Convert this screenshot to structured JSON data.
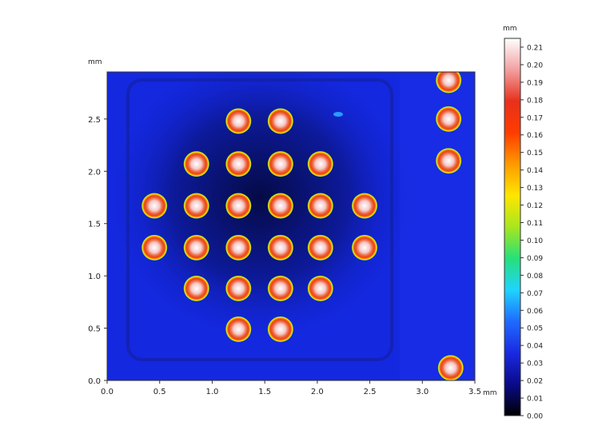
{
  "chart_data": {
    "type": "heatmap",
    "subtype": "height-map with solder-bump pads",
    "x_unit": "mm",
    "y_unit": "mm",
    "x_ticks": [
      "0.0",
      "0.5",
      "1.0",
      "1.5",
      "2.0",
      "2.5",
      "3.0",
      "3.5"
    ],
    "y_ticks": [
      "0.0",
      "0.5",
      "1.0",
      "1.5",
      "2.0",
      "2.5"
    ],
    "xlim": [
      0,
      3.5
    ],
    "ylim": [
      0,
      2.95
    ],
    "colorbar": {
      "unit": "mm",
      "ticks": [
        "0.21",
        "0.20",
        "0.19",
        "0.18",
        "0.17",
        "0.16",
        "0.15",
        "0.14",
        "0.13",
        "0.12",
        "0.11",
        "0.10",
        "0.09",
        "0.08",
        "0.07",
        "0.06",
        "0.05",
        "0.04",
        "0.03",
        "0.02",
        "0.01",
        "0.00"
      ],
      "range": [
        0,
        0.215
      ],
      "colormap": [
        "#000000",
        "#0a0a8a",
        "#1a2ae0",
        "#1f6bff",
        "#1fd4ff",
        "#26e07a",
        "#a8e61e",
        "#ffe600",
        "#ff9a00",
        "#ff3c00",
        "#e8301c",
        "#f2a0a0",
        "#ffffff"
      ]
    },
    "background": {
      "height": 0.02,
      "color": "#1428e0"
    },
    "bumps": [
      {
        "x": 1.25,
        "y": 2.48,
        "height": 0.2
      },
      {
        "x": 1.65,
        "y": 2.48,
        "height": 0.2
      },
      {
        "x": 0.85,
        "y": 2.07,
        "height": 0.18
      },
      {
        "x": 1.25,
        "y": 2.07,
        "height": 0.19
      },
      {
        "x": 1.65,
        "y": 2.07,
        "height": 0.18
      },
      {
        "x": 2.03,
        "y": 2.07,
        "height": 0.19
      },
      {
        "x": 0.45,
        "y": 1.67,
        "height": 0.2
      },
      {
        "x": 0.85,
        "y": 1.67,
        "height": 0.19
      },
      {
        "x": 1.25,
        "y": 1.67,
        "height": 0.19
      },
      {
        "x": 1.65,
        "y": 1.67,
        "height": 0.19
      },
      {
        "x": 2.03,
        "y": 1.67,
        "height": 0.19
      },
      {
        "x": 2.45,
        "y": 1.67,
        "height": 0.2
      },
      {
        "x": 0.45,
        "y": 1.27,
        "height": 0.2
      },
      {
        "x": 0.85,
        "y": 1.27,
        "height": 0.19
      },
      {
        "x": 1.25,
        "y": 1.27,
        "height": 0.2
      },
      {
        "x": 1.65,
        "y": 1.27,
        "height": 0.2
      },
      {
        "x": 2.03,
        "y": 1.27,
        "height": 0.2
      },
      {
        "x": 2.45,
        "y": 1.27,
        "height": 0.2
      },
      {
        "x": 0.85,
        "y": 0.88,
        "height": 0.19
      },
      {
        "x": 1.25,
        "y": 0.88,
        "height": 0.19
      },
      {
        "x": 1.65,
        "y": 0.88,
        "height": 0.18
      },
      {
        "x": 2.03,
        "y": 0.88,
        "height": 0.2
      },
      {
        "x": 1.25,
        "y": 0.49,
        "height": 0.2
      },
      {
        "x": 1.65,
        "y": 0.49,
        "height": 0.2
      },
      {
        "x": 3.25,
        "y": 2.87,
        "height": 0.2
      },
      {
        "x": 3.25,
        "y": 2.5,
        "height": 0.2
      },
      {
        "x": 3.25,
        "y": 2.1,
        "height": 0.2
      },
      {
        "x": 3.27,
        "y": 0.12,
        "height": 0.2
      }
    ],
    "grid": false,
    "legend": "none"
  }
}
